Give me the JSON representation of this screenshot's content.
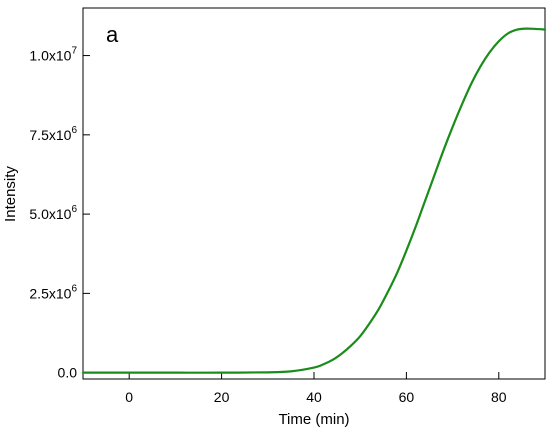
{
  "chart_data": {
    "type": "line",
    "panel_label": "a",
    "xlabel": "Time (min)",
    "ylabel": "Intensity",
    "xlim": [
      -10,
      90
    ],
    "ylim": [
      -200000,
      11500000
    ],
    "x_ticks": [
      {
        "value": 0,
        "label": "0"
      },
      {
        "value": 20,
        "label": "20"
      },
      {
        "value": 40,
        "label": "40"
      },
      {
        "value": 60,
        "label": "60"
      },
      {
        "value": 80,
        "label": "80"
      }
    ],
    "y_ticks": [
      {
        "value": 0,
        "mantissa": "0.0",
        "exponent": ""
      },
      {
        "value": 2500000,
        "mantissa": "2.5x10",
        "exponent": "6"
      },
      {
        "value": 5000000,
        "mantissa": "5.0x10",
        "exponent": "6"
      },
      {
        "value": 7500000,
        "mantissa": "7.5x10",
        "exponent": "6"
      },
      {
        "value": 10000000,
        "mantissa": "1.0x10",
        "exponent": "7"
      }
    ],
    "grid": false,
    "line_color": "#1a8c1a",
    "series": [
      {
        "x": [
          -10,
          0,
          10,
          20,
          30,
          35,
          40,
          42,
          44,
          46,
          48,
          50,
          52,
          54,
          56,
          58,
          60,
          62,
          64,
          66,
          68,
          70,
          72,
          74,
          76,
          78,
          80,
          82,
          84,
          86,
          88,
          90
        ],
        "values": [
          0,
          0,
          0,
          0,
          10000,
          40000,
          160000,
          260000,
          400000,
          600000,
          850000,
          1150000,
          1550000,
          2000000,
          2550000,
          3150000,
          3850000,
          4600000,
          5400000,
          6200000,
          7000000,
          7750000,
          8450000,
          9100000,
          9650000,
          10100000,
          10450000,
          10700000,
          10820000,
          10850000,
          10840000,
          10820000
        ]
      }
    ]
  }
}
